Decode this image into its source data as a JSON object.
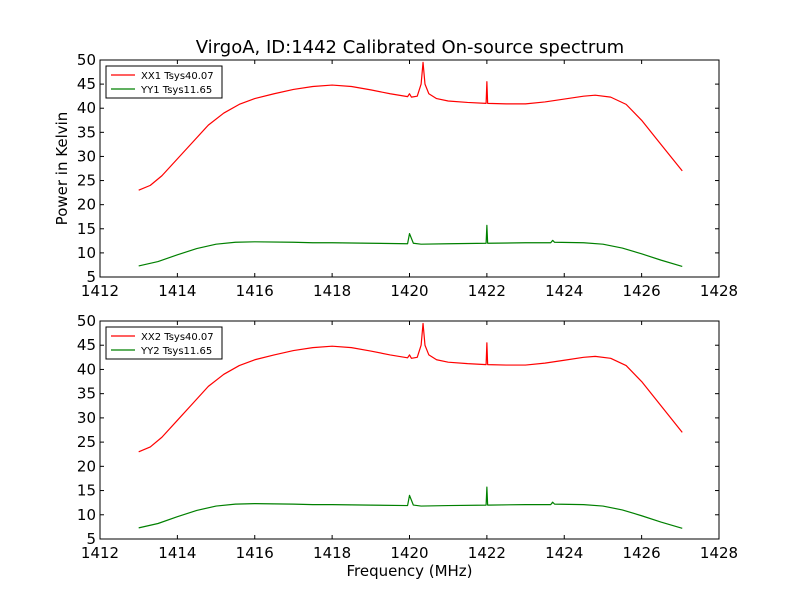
{
  "title": "VirgoA, ID:1442 Calibrated On-source spectrum",
  "chart_data": [
    {
      "type": "line",
      "title": "VirgoA, ID:1442 Calibrated On-source spectrum",
      "xlabel": "",
      "ylabel": "Power in Kelvin",
      "xlim": [
        1412,
        1428
      ],
      "ylim": [
        5,
        50
      ],
      "x_ticks": [
        "1412",
        "1414",
        "1416",
        "1418",
        "1420",
        "1422",
        "1424",
        "1426",
        "1428"
      ],
      "y_ticks": [
        "5",
        "10",
        "15",
        "20",
        "25",
        "30",
        "35",
        "40",
        "45",
        "50"
      ],
      "grid": false,
      "legend_position": "top-left",
      "series": [
        {
          "name": "XX1 Tsys40.07",
          "color": "#ff0000",
          "points": [
            [
              1413.0,
              23.0
            ],
            [
              1413.3,
              24.0
            ],
            [
              1413.6,
              26.0
            ],
            [
              1414.0,
              29.5
            ],
            [
              1414.4,
              33.0
            ],
            [
              1414.8,
              36.5
            ],
            [
              1415.2,
              39.0
            ],
            [
              1415.6,
              40.8
            ],
            [
              1416.0,
              42.0
            ],
            [
              1416.5,
              43.0
            ],
            [
              1417.0,
              43.9
            ],
            [
              1417.5,
              44.5
            ],
            [
              1418.0,
              44.8
            ],
            [
              1418.5,
              44.5
            ],
            [
              1419.0,
              43.8
            ],
            [
              1419.5,
              43.0
            ],
            [
              1419.95,
              42.4
            ],
            [
              1420.0,
              43.0
            ],
            [
              1420.05,
              42.3
            ],
            [
              1420.2,
              42.5
            ],
            [
              1420.3,
              45.0
            ],
            [
              1420.35,
              49.5
            ],
            [
              1420.4,
              45.0
            ],
            [
              1420.5,
              43.0
            ],
            [
              1420.7,
              42.0
            ],
            [
              1421.0,
              41.5
            ],
            [
              1421.5,
              41.2
            ],
            [
              1421.98,
              41.0
            ],
            [
              1422.0,
              45.5
            ],
            [
              1422.02,
              41.0
            ],
            [
              1422.5,
              40.9
            ],
            [
              1423.0,
              40.9
            ],
            [
              1423.5,
              41.3
            ],
            [
              1424.0,
              41.9
            ],
            [
              1424.5,
              42.5
            ],
            [
              1424.8,
              42.7
            ],
            [
              1425.2,
              42.3
            ],
            [
              1425.6,
              40.8
            ],
            [
              1426.0,
              37.5
            ],
            [
              1426.4,
              33.5
            ],
            [
              1426.8,
              29.5
            ],
            [
              1427.05,
              27.0
            ]
          ]
        },
        {
          "name": "YY1 Tsys11.65",
          "color": "#008000",
          "points": [
            [
              1413.0,
              7.3
            ],
            [
              1413.5,
              8.2
            ],
            [
              1414.0,
              9.6
            ],
            [
              1414.5,
              10.9
            ],
            [
              1415.0,
              11.8
            ],
            [
              1415.5,
              12.2
            ],
            [
              1416.0,
              12.3
            ],
            [
              1417.0,
              12.2
            ],
            [
              1417.5,
              12.1
            ],
            [
              1418.0,
              12.1
            ],
            [
              1419.0,
              12.0
            ],
            [
              1419.95,
              11.9
            ],
            [
              1420.0,
              14.0
            ],
            [
              1420.1,
              12.0
            ],
            [
              1420.3,
              11.8
            ],
            [
              1421.0,
              11.9
            ],
            [
              1421.98,
              12.0
            ],
            [
              1422.0,
              15.7
            ],
            [
              1422.02,
              12.0
            ],
            [
              1423.0,
              12.1
            ],
            [
              1423.65,
              12.1
            ],
            [
              1423.7,
              12.6
            ],
            [
              1423.75,
              12.2
            ],
            [
              1424.5,
              12.1
            ],
            [
              1425.0,
              11.8
            ],
            [
              1425.5,
              11.0
            ],
            [
              1426.0,
              9.8
            ],
            [
              1426.5,
              8.5
            ],
            [
              1427.05,
              7.2
            ]
          ]
        }
      ]
    },
    {
      "type": "line",
      "title": "",
      "xlabel": "Frequency (MHz)",
      "ylabel": "",
      "xlim": [
        1412,
        1428
      ],
      "ylim": [
        5,
        50
      ],
      "x_ticks": [
        "1412",
        "1414",
        "1416",
        "1418",
        "1420",
        "1422",
        "1424",
        "1426",
        "1428"
      ],
      "y_ticks": [
        "5",
        "10",
        "15",
        "20",
        "25",
        "30",
        "35",
        "40",
        "45",
        "50"
      ],
      "grid": false,
      "legend_position": "top-left",
      "series": [
        {
          "name": "XX2 Tsys40.07",
          "color": "#ff0000",
          "points": [
            [
              1413.0,
              23.0
            ],
            [
              1413.3,
              24.0
            ],
            [
              1413.6,
              26.0
            ],
            [
              1414.0,
              29.5
            ],
            [
              1414.4,
              33.0
            ],
            [
              1414.8,
              36.5
            ],
            [
              1415.2,
              39.0
            ],
            [
              1415.6,
              40.8
            ],
            [
              1416.0,
              42.0
            ],
            [
              1416.5,
              43.0
            ],
            [
              1417.0,
              43.9
            ],
            [
              1417.5,
              44.5
            ],
            [
              1418.0,
              44.8
            ],
            [
              1418.5,
              44.5
            ],
            [
              1419.0,
              43.8
            ],
            [
              1419.5,
              43.0
            ],
            [
              1419.95,
              42.4
            ],
            [
              1420.0,
              43.0
            ],
            [
              1420.05,
              42.3
            ],
            [
              1420.2,
              42.5
            ],
            [
              1420.3,
              45.0
            ],
            [
              1420.35,
              49.5
            ],
            [
              1420.4,
              45.0
            ],
            [
              1420.5,
              43.0
            ],
            [
              1420.7,
              42.0
            ],
            [
              1421.0,
              41.5
            ],
            [
              1421.5,
              41.2
            ],
            [
              1421.98,
              41.0
            ],
            [
              1422.0,
              45.5
            ],
            [
              1422.02,
              41.0
            ],
            [
              1422.5,
              40.9
            ],
            [
              1423.0,
              40.9
            ],
            [
              1423.5,
              41.3
            ],
            [
              1424.0,
              41.9
            ],
            [
              1424.5,
              42.5
            ],
            [
              1424.8,
              42.7
            ],
            [
              1425.2,
              42.3
            ],
            [
              1425.6,
              40.8
            ],
            [
              1426.0,
              37.5
            ],
            [
              1426.4,
              33.5
            ],
            [
              1426.8,
              29.5
            ],
            [
              1427.05,
              27.0
            ]
          ]
        },
        {
          "name": "YY2 Tsys11.65",
          "color": "#008000",
          "points": [
            [
              1413.0,
              7.3
            ],
            [
              1413.5,
              8.2
            ],
            [
              1414.0,
              9.6
            ],
            [
              1414.5,
              10.9
            ],
            [
              1415.0,
              11.8
            ],
            [
              1415.5,
              12.2
            ],
            [
              1416.0,
              12.3
            ],
            [
              1417.0,
              12.2
            ],
            [
              1417.5,
              12.1
            ],
            [
              1418.0,
              12.1
            ],
            [
              1419.0,
              12.0
            ],
            [
              1419.95,
              11.9
            ],
            [
              1420.0,
              14.0
            ],
            [
              1420.1,
              12.0
            ],
            [
              1420.3,
              11.8
            ],
            [
              1421.0,
              11.9
            ],
            [
              1421.98,
              12.0
            ],
            [
              1422.0,
              15.7
            ],
            [
              1422.02,
              12.0
            ],
            [
              1423.0,
              12.1
            ],
            [
              1423.65,
              12.1
            ],
            [
              1423.7,
              12.6
            ],
            [
              1423.75,
              12.2
            ],
            [
              1424.5,
              12.1
            ],
            [
              1425.0,
              11.8
            ],
            [
              1425.5,
              11.0
            ],
            [
              1426.0,
              9.8
            ],
            [
              1426.5,
              8.5
            ],
            [
              1427.05,
              7.2
            ]
          ]
        }
      ]
    }
  ]
}
